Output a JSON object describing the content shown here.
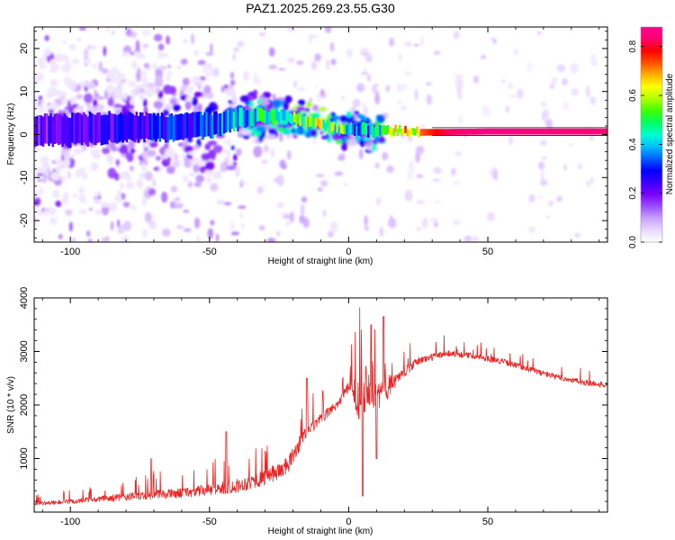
{
  "figure": {
    "title": "PAZ1.2025.269.23.55.G30"
  },
  "chart_data": [
    {
      "type": "heatmap",
      "xlabel": "Height of straight line (km)",
      "ylabel": "Frequency (Hz)",
      "xlim": [
        -113,
        93
      ],
      "ylim": [
        -25,
        25
      ],
      "xticks": [
        -100,
        -50,
        0,
        50
      ],
      "yticks": [
        -20,
        -10,
        0,
        10,
        20
      ],
      "colorbar": {
        "label": "Normalized spectral amplitude",
        "range": [
          0,
          0.88
        ],
        "ticks": [
          0.0,
          0.2,
          0.4,
          0.6,
          0.8
        ],
        "colors": [
          "#ffffff",
          "#e8d8ff",
          "#c9a0ff",
          "#9a4dff",
          "#7a00ff",
          "#3a00ff",
          "#0000ff",
          "#0060ff",
          "#00c0ff",
          "#00ffd0",
          "#00ff60",
          "#40ff00",
          "#b0ff00",
          "#ffff00",
          "#ffb000",
          "#ff5000",
          "#ff0000",
          "#ff0070",
          "#ff0090"
        ]
      },
      "ridge": [
        {
          "x": -110,
          "f": 1.0,
          "w": 3.5,
          "a": 0.22
        },
        {
          "x": -100,
          "f": 1.0,
          "w": 3.5,
          "a": 0.25
        },
        {
          "x": -90,
          "f": 1.5,
          "w": 3.5,
          "a": 0.27
        },
        {
          "x": -80,
          "f": 1.8,
          "w": 3.2,
          "a": 0.28
        },
        {
          "x": -70,
          "f": 1.6,
          "w": 3.0,
          "a": 0.3
        },
        {
          "x": -60,
          "f": 1.5,
          "w": 3.0,
          "a": 0.32
        },
        {
          "x": -50,
          "f": 2.2,
          "w": 2.8,
          "a": 0.34
        },
        {
          "x": -40,
          "f": 3.5,
          "w": 2.2,
          "a": 0.42
        },
        {
          "x": -33,
          "f": 4.2,
          "w": 1.6,
          "a": 0.48
        },
        {
          "x": -25,
          "f": 4.3,
          "w": 1.3,
          "a": 0.52
        },
        {
          "x": -18,
          "f": 3.6,
          "w": 1.1,
          "a": 0.58
        },
        {
          "x": -10,
          "f": 2.4,
          "w": 1.0,
          "a": 0.62
        },
        {
          "x": -3,
          "f": 1.0,
          "w": 1.0,
          "a": 0.55
        },
        {
          "x": 3,
          "f": 1.2,
          "w": 1.4,
          "a": 0.42
        },
        {
          "x": 8,
          "f": 0.8,
          "w": 1.4,
          "a": 0.45
        },
        {
          "x": 15,
          "f": 0.9,
          "w": 0.9,
          "a": 0.62
        },
        {
          "x": 25,
          "f": 0.5,
          "w": 0.8,
          "a": 0.72
        },
        {
          "x": 35,
          "f": 0.6,
          "w": 0.7,
          "a": 0.82
        },
        {
          "x": 50,
          "f": 0.7,
          "w": 0.7,
          "a": 0.86
        },
        {
          "x": 70,
          "f": 0.7,
          "w": 0.7,
          "a": 0.85
        },
        {
          "x": 93,
          "f": 0.7,
          "w": 0.7,
          "a": 0.84
        }
      ]
    },
    {
      "type": "line",
      "xlabel": "Height of straight line (km)",
      "ylabel": "SNR (10 * v/v)",
      "xlim": [
        -113,
        93
      ],
      "ylim": [
        0,
        4000
      ],
      "xticks": [
        -100,
        -50,
        0,
        50
      ],
      "yticks": [
        1000,
        2000,
        3000,
        4000
      ],
      "series": [
        {
          "color": "#ee2222",
          "envelope": [
            {
              "x": -113,
              "y": 150,
              "n": 60
            },
            {
              "x": -100,
              "y": 180,
              "n": 90
            },
            {
              "x": -90,
              "y": 220,
              "n": 120
            },
            {
              "x": -80,
              "y": 260,
              "n": 150
            },
            {
              "x": -72,
              "y": 290,
              "n": 170
            },
            {
              "x": -62,
              "y": 320,
              "n": 180
            },
            {
              "x": -50,
              "y": 380,
              "n": 220
            },
            {
              "x": -40,
              "y": 450,
              "n": 260
            },
            {
              "x": -30,
              "y": 600,
              "n": 300
            },
            {
              "x": -22,
              "y": 800,
              "n": 350
            },
            {
              "x": -16,
              "y": 1400,
              "n": 250
            },
            {
              "x": -10,
              "y": 1700,
              "n": 200
            },
            {
              "x": -4,
              "y": 2000,
              "n": 180
            },
            {
              "x": 0,
              "y": 2300,
              "n": 200
            },
            {
              "x": 4,
              "y": 2000,
              "n": 900
            },
            {
              "x": 7,
              "y": 2300,
              "n": 900
            },
            {
              "x": 10,
              "y": 2100,
              "n": 700
            },
            {
              "x": 13,
              "y": 2200,
              "n": 500
            },
            {
              "x": 18,
              "y": 2500,
              "n": 200
            },
            {
              "x": 25,
              "y": 2800,
              "n": 150
            },
            {
              "x": 35,
              "y": 2950,
              "n": 120
            },
            {
              "x": 45,
              "y": 2900,
              "n": 110
            },
            {
              "x": 55,
              "y": 2800,
              "n": 110
            },
            {
              "x": 65,
              "y": 2650,
              "n": 110
            },
            {
              "x": 75,
              "y": 2500,
              "n": 110
            },
            {
              "x": 85,
              "y": 2400,
              "n": 110
            },
            {
              "x": 93,
              "y": 2350,
              "n": 110
            }
          ],
          "features": [
            {
              "x": 5,
              "y": 4000
            },
            {
              "x": 5,
              "y": 300
            },
            {
              "x": 8,
              "y": 3500
            },
            {
              "x": 10,
              "y": 1000
            },
            {
              "x": 12.5,
              "y": 3650
            },
            {
              "x": -15,
              "y": 2500
            },
            {
              "x": -71,
              "y": 1000
            },
            {
              "x": -44,
              "y": 1500
            }
          ]
        }
      ]
    }
  ]
}
